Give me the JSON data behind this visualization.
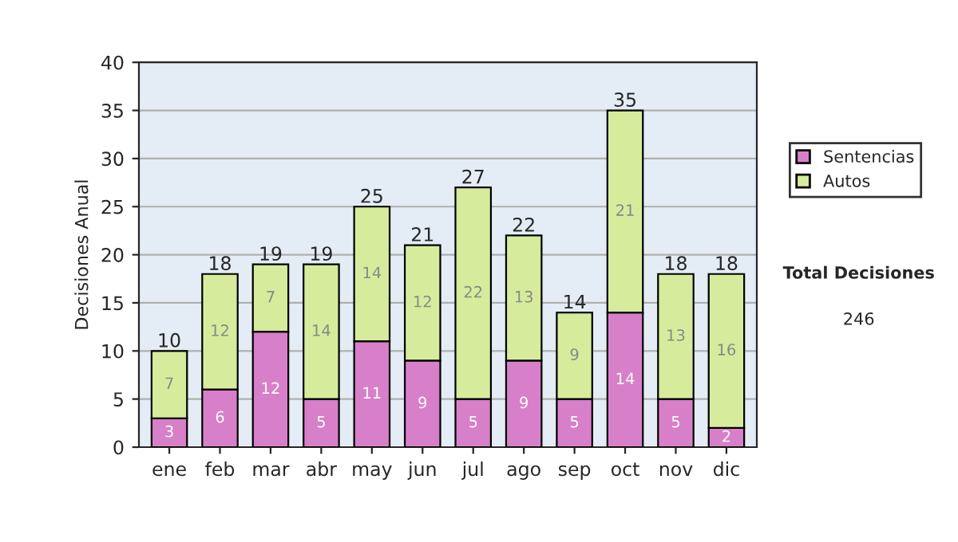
{
  "chart_data": {
    "type": "bar",
    "stacked": true,
    "ylabel": "Decisiones Anual",
    "categories": [
      "ene",
      "feb",
      "mar",
      "abr",
      "may",
      "jun",
      "jul",
      "ago",
      "sep",
      "oct",
      "nov",
      "dic"
    ],
    "series": [
      {
        "name": "Sentencias",
        "color": "#d87fc9",
        "values": [
          3,
          6,
          12,
          5,
          11,
          9,
          5,
          9,
          5,
          14,
          5,
          2
        ]
      },
      {
        "name": "Autos",
        "color": "#d6ec9c",
        "values": [
          7,
          12,
          7,
          14,
          14,
          12,
          22,
          13,
          9,
          21,
          13,
          16
        ]
      }
    ],
    "totals": [
      "10",
      "18",
      "19",
      "19",
      "25",
      "21",
      "27",
      "22",
      "14",
      "35",
      "18",
      "18"
    ],
    "data_labels": true,
    "ylim": [
      0,
      40
    ],
    "yticks": [
      0,
      5,
      10,
      15,
      20,
      25,
      30,
      35,
      40
    ],
    "grid": "y",
    "legend": "right",
    "annotations": [
      "Total Decisiones",
      "246"
    ]
  }
}
